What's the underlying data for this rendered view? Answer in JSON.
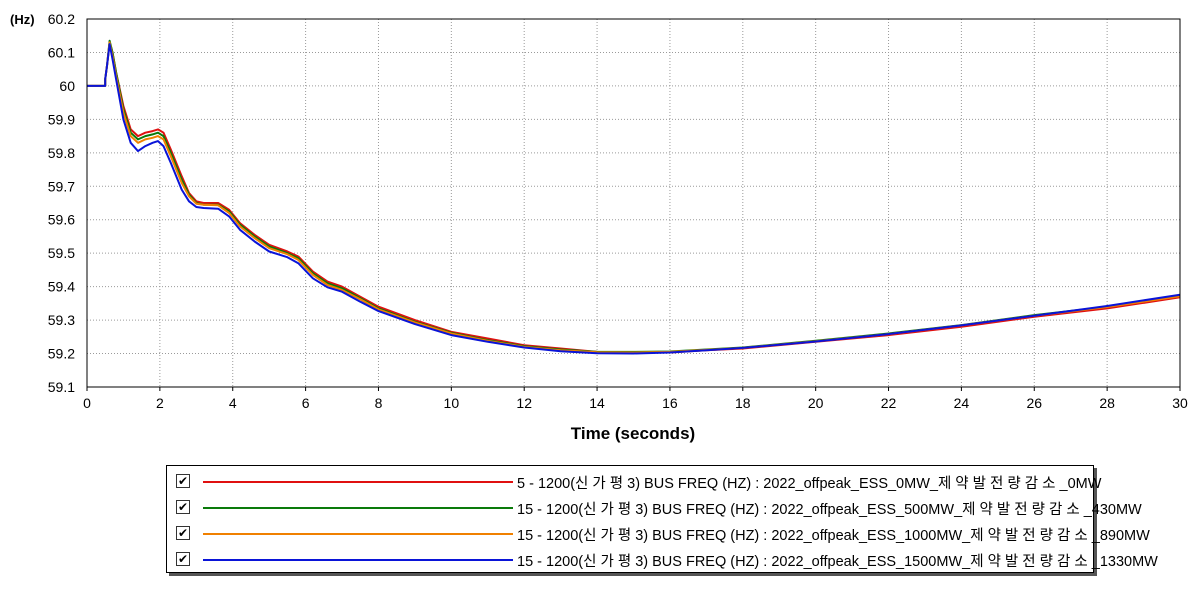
{
  "chart_data": {
    "type": "line",
    "unit_label": "(Hz)",
    "xlabel": "Time (seconds)",
    "xlim": [
      0,
      30
    ],
    "ylim": [
      59.1,
      60.2
    ],
    "xticks": [
      "0",
      "2",
      "4",
      "6",
      "8",
      "10",
      "12",
      "14",
      "16",
      "18",
      "20",
      "22",
      "24",
      "26",
      "28",
      "30"
    ],
    "yticks": [
      "59.1",
      "59.2",
      "59.3",
      "59.4",
      "59.5",
      "59.6",
      "59.7",
      "59.8",
      "59.9",
      "60",
      "60.1",
      "60.2"
    ],
    "grid": true,
    "legend_position": "bottom",
    "series": [
      {
        "name": "5 - 1200(신 가 평 3) BUS FREQ (HZ) : 2022_offpeak_ESS_0MW_제 약 발 전 량 감 소 _0MW",
        "color": "#e01010",
        "x": [
          0,
          0.5,
          0.5,
          0.55,
          0.62,
          0.7,
          0.8,
          1.0,
          1.2,
          1.4,
          1.6,
          1.8,
          1.95,
          2.1,
          2.3,
          2.6,
          2.8,
          3.0,
          3.2,
          3.6,
          3.9,
          4.2,
          4.6,
          5.0,
          5.5,
          5.8,
          6.2,
          6.6,
          7.0,
          7.5,
          8.0,
          9.0,
          10.0,
          11.0,
          12.0,
          13.0,
          14.0,
          15.0,
          16.0,
          17.0,
          18.0,
          20.0,
          22.0,
          24.0,
          26.0,
          28.0,
          30.0
        ],
        "y": [
          60.0,
          60.0,
          60.02,
          60.06,
          60.13,
          60.1,
          60.04,
          59.94,
          59.87,
          59.85,
          59.86,
          59.865,
          59.87,
          59.86,
          59.81,
          59.73,
          59.68,
          59.655,
          59.65,
          59.65,
          59.63,
          59.59,
          59.555,
          59.525,
          59.505,
          59.49,
          59.445,
          59.415,
          59.4,
          59.37,
          59.34,
          59.3,
          59.265,
          59.245,
          59.225,
          59.215,
          59.205,
          59.203,
          59.203,
          59.21,
          59.215,
          59.235,
          59.255,
          59.28,
          59.31,
          59.335,
          59.368
        ]
      },
      {
        "name": "15 - 1200(신 가 평 3) BUS FREQ (HZ) : 2022_offpeak_ESS_500MW_제 약 발 전 량 감 소 _430MW",
        "color": "#0a7a0a",
        "x": [
          0,
          0.5,
          0.5,
          0.55,
          0.62,
          0.7,
          0.8,
          1.0,
          1.2,
          1.4,
          1.6,
          1.8,
          1.95,
          2.1,
          2.3,
          2.6,
          2.8,
          3.0,
          3.2,
          3.6,
          3.9,
          4.2,
          4.6,
          5.0,
          5.5,
          5.8,
          6.2,
          6.6,
          7.0,
          7.5,
          8.0,
          9.0,
          10.0,
          11.0,
          12.0,
          13.0,
          14.0,
          15.0,
          16.0,
          17.0,
          18.0,
          20.0,
          22.0,
          24.0,
          26.0,
          28.0,
          30.0
        ],
        "y": [
          60.0,
          60.0,
          60.02,
          60.06,
          60.135,
          60.1,
          60.04,
          59.93,
          59.86,
          59.84,
          59.85,
          59.855,
          59.86,
          59.85,
          59.8,
          59.72,
          59.675,
          59.65,
          59.645,
          59.645,
          59.625,
          59.585,
          59.55,
          59.52,
          59.5,
          59.485,
          59.44,
          59.41,
          59.395,
          59.365,
          59.335,
          59.295,
          59.262,
          59.24,
          59.222,
          59.212,
          59.205,
          59.205,
          59.206,
          59.212,
          59.218,
          59.238,
          59.26,
          59.285,
          59.315,
          59.34,
          59.373
        ]
      },
      {
        "name": "15 - 1200(신 가 평 3) BUS FREQ (HZ) : 2022_offpeak_ESS_1000MW_제 약 발 전 량 감 소 _890MW",
        "color": "#f08000",
        "x": [
          0,
          0.5,
          0.5,
          0.55,
          0.62,
          0.7,
          0.8,
          1.0,
          1.2,
          1.4,
          1.6,
          1.8,
          1.95,
          2.1,
          2.3,
          2.6,
          2.8,
          3.0,
          3.2,
          3.6,
          3.9,
          4.2,
          4.6,
          5.0,
          5.5,
          5.8,
          6.2,
          6.6,
          7.0,
          7.5,
          8.0,
          9.0,
          10.0,
          11.0,
          12.0,
          13.0,
          14.0,
          15.0,
          16.0,
          17.0,
          18.0,
          20.0,
          22.0,
          24.0,
          26.0,
          28.0,
          30.0
        ],
        "y": [
          60.0,
          60.0,
          60.02,
          60.06,
          60.13,
          60.09,
          60.03,
          59.92,
          59.85,
          59.83,
          59.84,
          59.845,
          59.85,
          59.84,
          59.79,
          59.71,
          59.67,
          59.648,
          59.645,
          59.643,
          59.62,
          59.58,
          59.545,
          59.515,
          59.497,
          59.48,
          59.435,
          59.405,
          59.39,
          59.362,
          59.332,
          59.293,
          59.26,
          59.238,
          59.22,
          59.21,
          59.204,
          59.203,
          59.205,
          59.211,
          59.217,
          59.237,
          59.258,
          59.284,
          59.313,
          59.339,
          59.371
        ]
      },
      {
        "name": "15 - 1200(신 가 평 3) BUS FREQ (HZ) : 2022_offpeak_ESS_1500MW_제 약 발 전 량 감 소 _1330MW",
        "color": "#0a14d8",
        "x": [
          0,
          0.5,
          0.5,
          0.55,
          0.62,
          0.7,
          0.8,
          1.0,
          1.2,
          1.4,
          1.6,
          1.8,
          1.95,
          2.1,
          2.3,
          2.6,
          2.8,
          3.0,
          3.2,
          3.6,
          3.9,
          4.2,
          4.6,
          5.0,
          5.5,
          5.8,
          6.2,
          6.6,
          7.0,
          7.5,
          8.0,
          9.0,
          10.0,
          11.0,
          12.0,
          13.0,
          14.0,
          15.0,
          16.0,
          17.0,
          18.0,
          20.0,
          22.0,
          24.0,
          26.0,
          28.0,
          30.0
        ],
        "y": [
          60.0,
          60.0,
          60.02,
          60.06,
          60.125,
          60.08,
          60.02,
          59.9,
          59.83,
          59.805,
          59.82,
          59.83,
          59.835,
          59.82,
          59.77,
          59.69,
          59.655,
          59.638,
          59.635,
          59.633,
          59.61,
          59.57,
          59.535,
          59.505,
          59.488,
          59.47,
          59.425,
          59.398,
          59.385,
          59.355,
          59.327,
          59.288,
          59.255,
          59.235,
          59.218,
          59.207,
          59.201,
          59.2,
          59.203,
          59.21,
          59.217,
          59.236,
          59.258,
          59.284,
          59.313,
          59.342,
          59.376
        ]
      }
    ]
  }
}
